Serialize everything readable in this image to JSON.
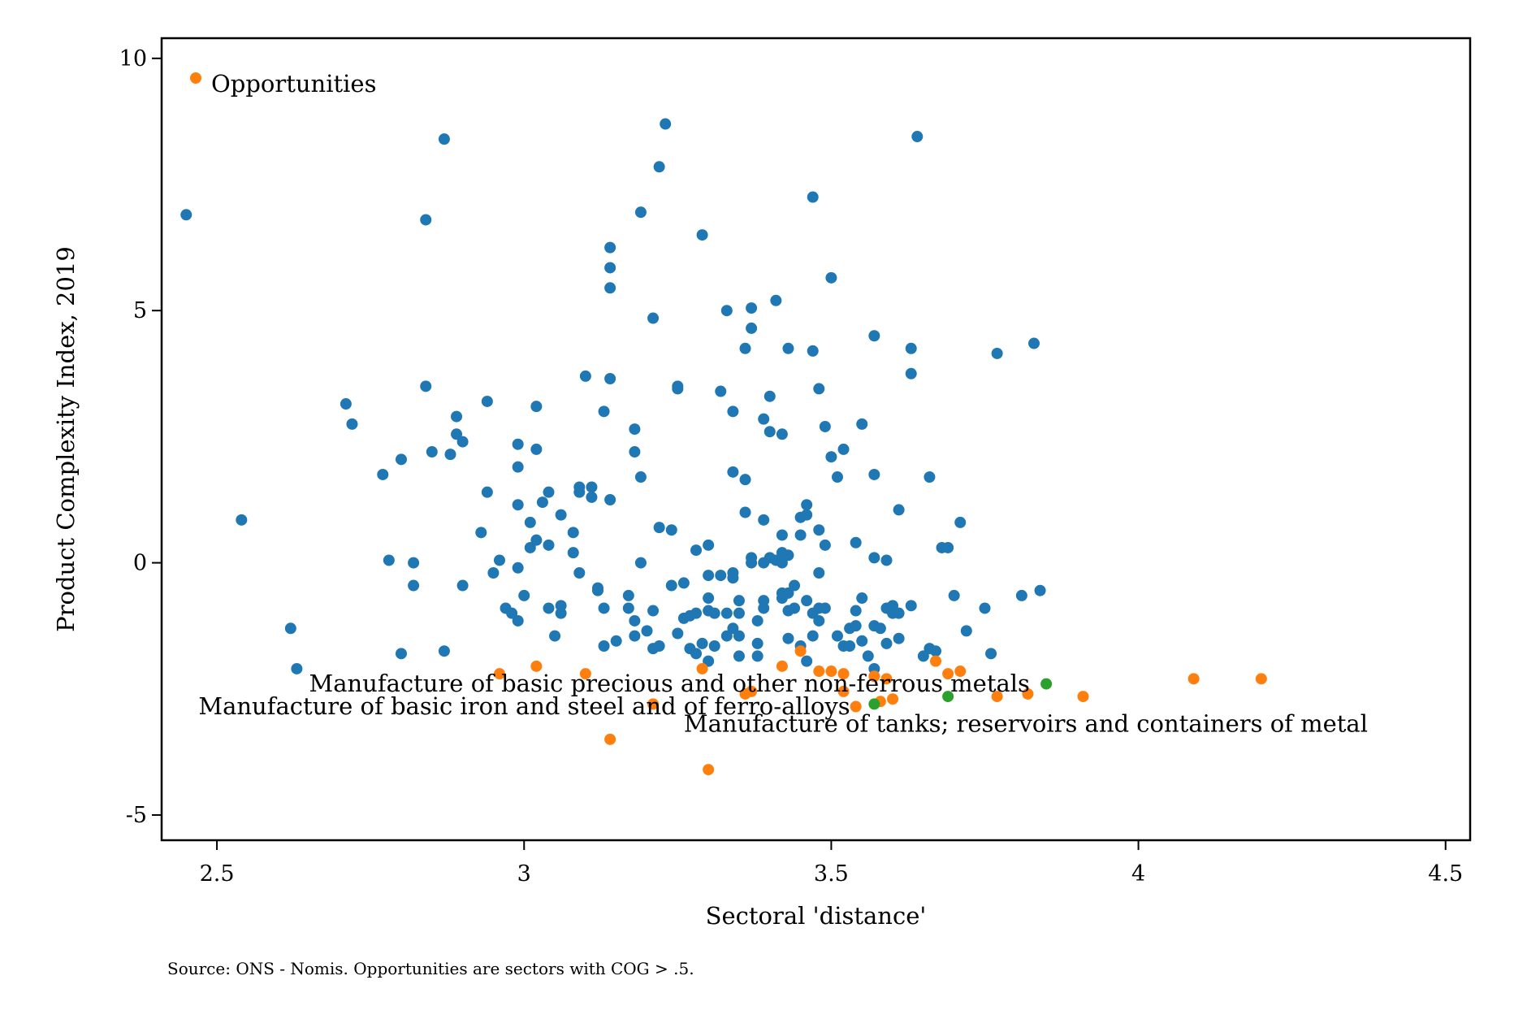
{
  "chart_data": {
    "type": "scatter",
    "title": "",
    "xlabel": "Sectoral 'distance'",
    "ylabel": "Product Complexity Index, 2019",
    "xlim": [
      2.41,
      4.54
    ],
    "ylim": [
      -5.5,
      10.4
    ],
    "xticks": [
      2.5,
      3,
      3.5,
      4,
      4.5
    ],
    "xtick_labels": [
      "2.5",
      "3",
      "3.5",
      "4",
      "4.5"
    ],
    "yticks": [
      10,
      5,
      0,
      -5
    ],
    "ytick_labels": [
      "10",
      "5",
      "0",
      "-5"
    ],
    "grid": false,
    "legend": {
      "position": "top-left",
      "entries": [
        "Opportunities"
      ]
    },
    "note": "Source: ONS - Nomis. Opportunities are sectors with COG > .5.",
    "colors": {
      "all": "#1f77b4",
      "opportunity": "#ff7f0e",
      "highlight": "#2ca02c"
    },
    "series": [
      {
        "role": "all-sectors",
        "color": "#1f77b4",
        "points": [
          [
            2.45,
            6.9
          ],
          [
            2.54,
            0.85
          ],
          [
            2.62,
            -1.3
          ],
          [
            2.63,
            -2.1
          ],
          [
            2.71,
            3.15
          ],
          [
            2.72,
            2.75
          ],
          [
            2.77,
            1.75
          ],
          [
            2.78,
            0.05
          ],
          [
            2.8,
            2.05
          ],
          [
            2.8,
            -1.8
          ],
          [
            2.82,
            0.0
          ],
          [
            2.82,
            -0.45
          ],
          [
            2.84,
            6.8
          ],
          [
            2.84,
            3.5
          ],
          [
            2.85,
            2.2
          ],
          [
            2.87,
            8.4
          ],
          [
            2.87,
            -1.75
          ],
          [
            2.88,
            2.15
          ],
          [
            2.89,
            2.9
          ],
          [
            2.89,
            2.55
          ],
          [
            2.9,
            2.4
          ],
          [
            2.9,
            -0.45
          ],
          [
            2.93,
            0.6
          ],
          [
            2.94,
            3.2
          ],
          [
            2.94,
            1.4
          ],
          [
            2.95,
            -0.2
          ],
          [
            2.96,
            0.05
          ],
          [
            2.97,
            -0.9
          ],
          [
            2.98,
            -1.0
          ],
          [
            2.99,
            2.35
          ],
          [
            2.99,
            1.9
          ],
          [
            2.99,
            1.15
          ],
          [
            2.99,
            -0.1
          ],
          [
            2.99,
            -1.15
          ],
          [
            3.0,
            -0.65
          ],
          [
            3.01,
            0.8
          ],
          [
            3.01,
            0.3
          ],
          [
            3.02,
            3.1
          ],
          [
            3.02,
            2.25
          ],
          [
            3.02,
            0.45
          ],
          [
            3.03,
            1.2
          ],
          [
            3.04,
            1.4
          ],
          [
            3.04,
            0.35
          ],
          [
            3.04,
            -0.9
          ],
          [
            3.05,
            -1.45
          ],
          [
            3.06,
            0.95
          ],
          [
            3.06,
            -0.85
          ],
          [
            3.06,
            -1.0
          ],
          [
            3.08,
            0.6
          ],
          [
            3.08,
            0.2
          ],
          [
            3.09,
            -0.2
          ],
          [
            3.09,
            1.4
          ],
          [
            3.09,
            1.5
          ],
          [
            3.1,
            3.7
          ],
          [
            3.11,
            1.5
          ],
          [
            3.11,
            1.3
          ],
          [
            3.12,
            -0.55
          ],
          [
            3.12,
            -0.5
          ],
          [
            3.13,
            -0.9
          ],
          [
            3.13,
            -1.65
          ],
          [
            3.13,
            3.0
          ],
          [
            3.14,
            6.25
          ],
          [
            3.14,
            5.85
          ],
          [
            3.14,
            5.45
          ],
          [
            3.14,
            1.25
          ],
          [
            3.14,
            3.65
          ],
          [
            3.15,
            -1.55
          ],
          [
            3.17,
            -0.65
          ],
          [
            3.17,
            -0.9
          ],
          [
            3.18,
            -1.15
          ],
          [
            3.18,
            -1.45
          ],
          [
            3.18,
            2.65
          ],
          [
            3.18,
            2.2
          ],
          [
            3.19,
            6.95
          ],
          [
            3.19,
            1.7
          ],
          [
            3.19,
            0.0
          ],
          [
            3.2,
            -1.35
          ],
          [
            3.21,
            -1.7
          ],
          [
            3.21,
            -0.95
          ],
          [
            3.21,
            4.85
          ],
          [
            3.22,
            7.85
          ],
          [
            3.22,
            0.7
          ],
          [
            3.22,
            -1.65
          ],
          [
            3.23,
            8.7
          ],
          [
            3.24,
            -0.45
          ],
          [
            3.24,
            0.65
          ],
          [
            3.25,
            3.5
          ],
          [
            3.25,
            3.45
          ],
          [
            3.25,
            -1.4
          ],
          [
            3.26,
            -1.1
          ],
          [
            3.26,
            -0.4
          ],
          [
            3.27,
            -1.05
          ],
          [
            3.27,
            -1.7
          ],
          [
            3.28,
            -1.0
          ],
          [
            3.28,
            0.25
          ],
          [
            3.28,
            -1.8
          ],
          [
            3.29,
            6.5
          ],
          [
            3.29,
            -1.6
          ],
          [
            3.3,
            -0.7
          ],
          [
            3.3,
            -0.95
          ],
          [
            3.3,
            -1.95
          ],
          [
            3.3,
            0.35
          ],
          [
            3.3,
            -0.25
          ],
          [
            3.31,
            -1.65
          ],
          [
            3.31,
            -1.0
          ],
          [
            3.32,
            -0.25
          ],
          [
            3.32,
            3.4
          ],
          [
            3.33,
            5.0
          ],
          [
            3.33,
            -1.45
          ],
          [
            3.33,
            -1.0
          ],
          [
            3.34,
            -0.3
          ],
          [
            3.34,
            -0.2
          ],
          [
            3.34,
            3.0
          ],
          [
            3.34,
            1.8
          ],
          [
            3.34,
            -1.3
          ],
          [
            3.35,
            -1.45
          ],
          [
            3.35,
            -0.75
          ],
          [
            3.35,
            -1.0
          ],
          [
            3.35,
            -1.85
          ],
          [
            3.36,
            1.65
          ],
          [
            3.36,
            4.25
          ],
          [
            3.36,
            1.0
          ],
          [
            3.37,
            5.05
          ],
          [
            3.37,
            4.65
          ],
          [
            3.37,
            0.1
          ],
          [
            3.37,
            0.0
          ],
          [
            3.38,
            -1.6
          ],
          [
            3.38,
            -1.15
          ],
          [
            3.38,
            -1.85
          ],
          [
            3.39,
            2.85
          ],
          [
            3.39,
            -0.75
          ],
          [
            3.39,
            -0.9
          ],
          [
            3.39,
            0.0
          ],
          [
            3.39,
            0.85
          ],
          [
            3.4,
            3.3
          ],
          [
            3.4,
            2.6
          ],
          [
            3.4,
            0.1
          ],
          [
            3.41,
            5.2
          ],
          [
            3.41,
            0.05
          ],
          [
            3.42,
            0.2
          ],
          [
            3.42,
            0.0
          ],
          [
            3.42,
            0.55
          ],
          [
            3.42,
            -0.7
          ],
          [
            3.42,
            -0.6
          ],
          [
            3.42,
            2.55
          ],
          [
            3.43,
            0.15
          ],
          [
            3.43,
            -0.6
          ],
          [
            3.43,
            4.25
          ],
          [
            3.43,
            -1.5
          ],
          [
            3.43,
            -0.95
          ],
          [
            3.44,
            -0.45
          ],
          [
            3.44,
            -0.9
          ],
          [
            3.45,
            0.55
          ],
          [
            3.45,
            -1.65
          ],
          [
            3.45,
            0.9
          ],
          [
            3.46,
            -1.95
          ],
          [
            3.46,
            1.15
          ],
          [
            3.46,
            0.95
          ],
          [
            3.46,
            -0.75
          ],
          [
            3.47,
            7.25
          ],
          [
            3.47,
            -1.0
          ],
          [
            3.47,
            -1.45
          ],
          [
            3.47,
            4.2
          ],
          [
            3.48,
            -0.2
          ],
          [
            3.48,
            3.45
          ],
          [
            3.48,
            -1.15
          ],
          [
            3.48,
            0.65
          ],
          [
            3.48,
            -0.9
          ],
          [
            3.49,
            2.7
          ],
          [
            3.49,
            0.35
          ],
          [
            3.49,
            -0.9
          ],
          [
            3.5,
            5.65
          ],
          [
            3.5,
            2.1
          ],
          [
            3.51,
            1.7
          ],
          [
            3.51,
            -1.45
          ],
          [
            3.52,
            2.25
          ],
          [
            3.52,
            -1.65
          ],
          [
            3.53,
            -1.65
          ],
          [
            3.53,
            -1.3
          ],
          [
            3.54,
            0.4
          ],
          [
            3.54,
            -1.25
          ],
          [
            3.54,
            -0.95
          ],
          [
            3.55,
            -1.55
          ],
          [
            3.55,
            2.75
          ],
          [
            3.55,
            -0.7
          ],
          [
            3.56,
            -1.85
          ],
          [
            3.57,
            -1.25
          ],
          [
            3.57,
            -2.1
          ],
          [
            3.57,
            1.75
          ],
          [
            3.57,
            4.5
          ],
          [
            3.57,
            0.1
          ],
          [
            3.58,
            -1.3
          ],
          [
            3.59,
            0.05
          ],
          [
            3.59,
            -0.9
          ],
          [
            3.59,
            -1.6
          ],
          [
            3.6,
            -0.85
          ],
          [
            3.6,
            -1.0
          ],
          [
            3.61,
            -1.0
          ],
          [
            3.61,
            -1.5
          ],
          [
            3.61,
            1.05
          ],
          [
            3.63,
            4.25
          ],
          [
            3.63,
            3.75
          ],
          [
            3.63,
            -0.85
          ],
          [
            3.64,
            8.45
          ],
          [
            3.65,
            -1.85
          ],
          [
            3.66,
            1.7
          ],
          [
            3.66,
            -1.7
          ],
          [
            3.67,
            -1.75
          ],
          [
            3.68,
            0.3
          ],
          [
            3.69,
            0.3
          ],
          [
            3.7,
            -0.65
          ],
          [
            3.71,
            0.8
          ],
          [
            3.72,
            -1.35
          ],
          [
            3.75,
            -0.9
          ],
          [
            3.76,
            -1.8
          ],
          [
            3.77,
            4.15
          ],
          [
            3.81,
            -0.65
          ],
          [
            3.83,
            4.35
          ],
          [
            3.84,
            -0.55
          ]
        ]
      },
      {
        "role": "opportunities",
        "name": "Opportunities",
        "color": "#ff7f0e",
        "points": [
          [
            2.96,
            -2.2
          ],
          [
            3.02,
            -2.05
          ],
          [
            3.1,
            -2.2
          ],
          [
            3.14,
            -3.5
          ],
          [
            3.21,
            -2.8
          ],
          [
            3.29,
            -2.1
          ],
          [
            3.3,
            -4.1
          ],
          [
            3.36,
            -2.6
          ],
          [
            3.37,
            -2.55
          ],
          [
            3.42,
            -2.05
          ],
          [
            3.45,
            -1.75
          ],
          [
            3.48,
            -2.15
          ],
          [
            3.5,
            -2.15
          ],
          [
            3.52,
            -2.2
          ],
          [
            3.52,
            -2.55
          ],
          [
            3.54,
            -2.85
          ],
          [
            3.57,
            -2.25
          ],
          [
            3.58,
            -2.75
          ],
          [
            3.59,
            -2.3
          ],
          [
            3.6,
            -2.7
          ],
          [
            3.67,
            -1.95
          ],
          [
            3.69,
            -2.2
          ],
          [
            3.71,
            -2.15
          ],
          [
            3.77,
            -2.65
          ],
          [
            3.82,
            -2.6
          ],
          [
            3.91,
            -2.65
          ],
          [
            4.09,
            -2.3
          ],
          [
            4.2,
            -2.3
          ]
        ]
      },
      {
        "role": "highlighted",
        "color": "#2ca02c",
        "points": [
          [
            3.57,
            -2.8
          ],
          [
            3.69,
            -2.65
          ],
          [
            3.85,
            -2.4
          ]
        ]
      }
    ],
    "annotations": [
      {
        "text": "Manufacture of basic precious and other non-ferrous metals",
        "x": 2.65,
        "y": -2.55
      },
      {
        "text": "Manufacture of basic iron and steel and of ferro-alloys",
        "x": 2.47,
        "y": -3.0
      },
      {
        "text": "Manufacture of tanks; reservoirs and containers of metal",
        "x": 3.26,
        "y": -3.35
      }
    ]
  }
}
